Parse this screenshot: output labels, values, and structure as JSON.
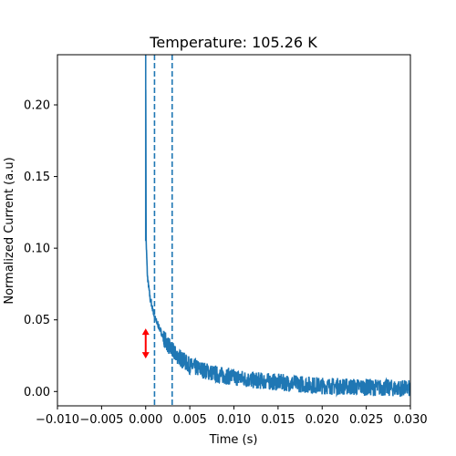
{
  "chart_data": {
    "type": "line",
    "title": "Temperature: 105.26 K",
    "xlabel": "Time (s)",
    "ylabel": "Normalized Current (a.u)",
    "xlim": [
      -0.01,
      0.03
    ],
    "ylim": [
      -0.01,
      0.235
    ],
    "x_ticks": [
      -0.01,
      -0.005,
      0.0,
      0.005,
      0.01,
      0.015,
      0.02,
      0.025,
      0.03
    ],
    "x_tick_labels": [
      "−0.010",
      "−0.005",
      "0.000",
      "0.005",
      "0.010",
      "0.015",
      "0.020",
      "0.025",
      "0.030"
    ],
    "y_ticks": [
      0.0,
      0.05,
      0.1,
      0.15,
      0.2
    ],
    "y_tick_labels": [
      "0.00",
      "0.05",
      "0.10",
      "0.15",
      "0.20"
    ],
    "grid": false,
    "series": [
      {
        "color": "#1f77b4",
        "decay": {
          "t0": 0.0,
          "peak_value": 0.235,
          "start_value": 0.105,
          "points": [
            [
              0.0,
              0.235
            ],
            [
              5e-05,
              0.105
            ],
            [
              0.0002,
              0.08
            ],
            [
              0.0005,
              0.065
            ],
            [
              0.001,
              0.052
            ],
            [
              0.002,
              0.038
            ],
            [
              0.003,
              0.028
            ],
            [
              0.005,
              0.018
            ],
            [
              0.008,
              0.012
            ],
            [
              0.012,
              0.008
            ],
            [
              0.02,
              0.004
            ],
            [
              0.03,
              0.002
            ]
          ],
          "noise_amplitude": 0.006
        }
      }
    ],
    "vertical_lines": [
      {
        "x": 0.001,
        "style": "dashed",
        "color": "#1f77b4"
      },
      {
        "x": 0.003,
        "style": "dashed",
        "color": "#1f77b4"
      }
    ],
    "annotation_arrow": {
      "x": 0.0,
      "y_from": 0.023,
      "y_to": 0.044,
      "color": "#ff0000",
      "style": "double-headed"
    }
  }
}
